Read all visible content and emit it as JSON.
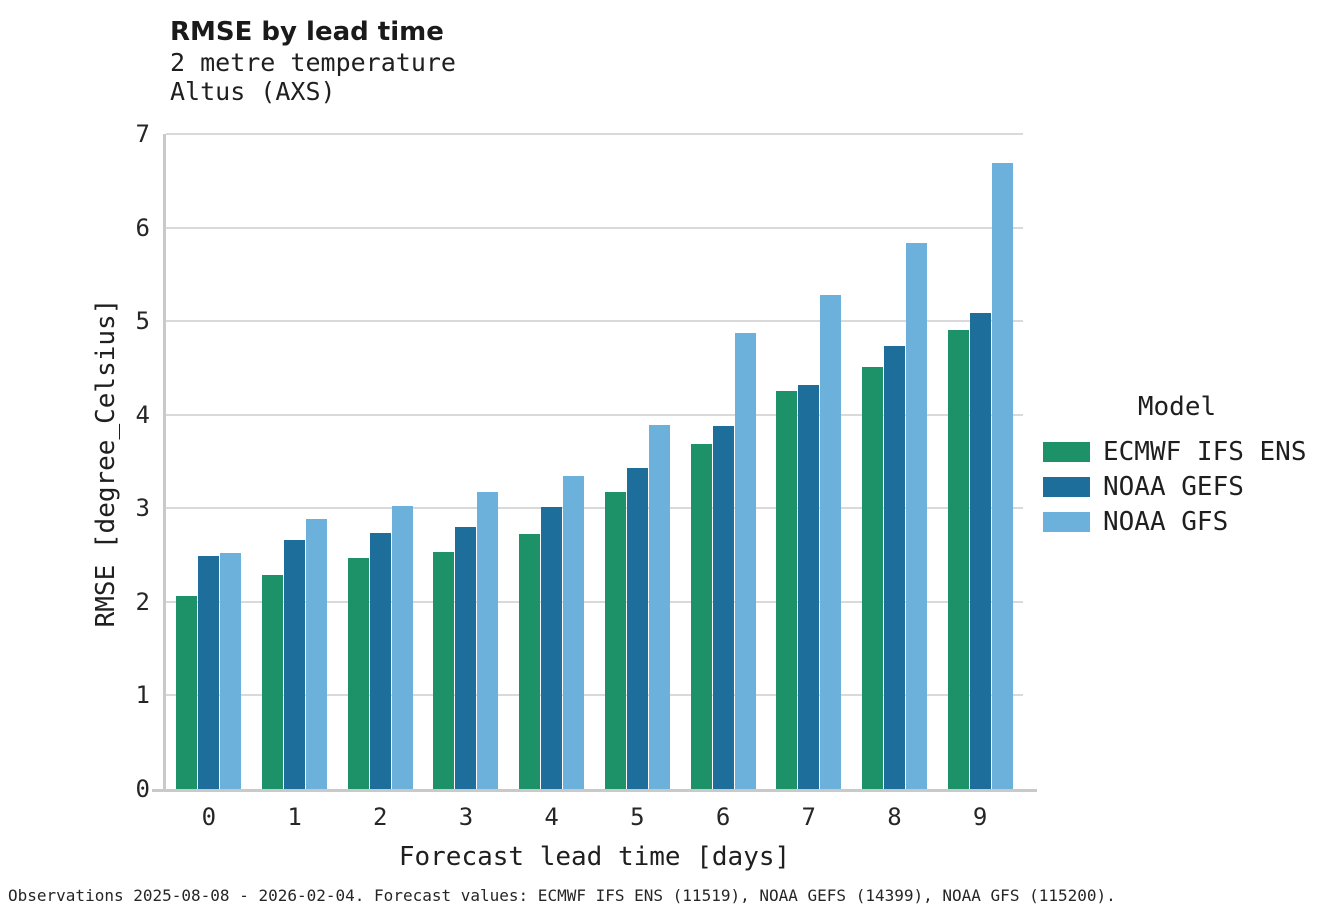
{
  "header": {
    "title": "RMSE by lead time",
    "subtitle_line1": "2 metre temperature",
    "subtitle_line2": "Altus (AXS)"
  },
  "chart_data": {
    "type": "bar",
    "title": "RMSE by lead time",
    "subtitle": [
      "2 metre temperature",
      "Altus (AXS)"
    ],
    "categories": [
      "0",
      "1",
      "2",
      "3",
      "4",
      "5",
      "6",
      "7",
      "8",
      "9"
    ],
    "series": [
      {
        "name": "ECMWF IFS ENS",
        "color": "#1d9168",
        "values": [
          2.06,
          2.29,
          2.47,
          2.53,
          2.73,
          3.17,
          3.69,
          4.25,
          4.51,
          4.91
        ]
      },
      {
        "name": "NOAA GEFS",
        "color": "#1e6e9c",
        "values": [
          2.49,
          2.66,
          2.74,
          2.8,
          3.01,
          3.43,
          3.88,
          4.32,
          4.73,
          5.09
        ]
      },
      {
        "name": "NOAA GFS",
        "color": "#6cb0dc",
        "values": [
          2.52,
          2.89,
          3.02,
          3.17,
          3.35,
          3.89,
          4.87,
          5.28,
          5.83,
          6.69
        ]
      }
    ],
    "xlabel": "Forecast lead time [days]",
    "ylabel": "RMSE [degree_Celsius]",
    "ylim": [
      0,
      7
    ],
    "yticks": [
      0,
      1,
      2,
      3,
      4,
      5,
      6,
      7
    ],
    "legend_title": "Model",
    "legend_position": "right",
    "grid": "horizontal-only",
    "colors": {
      "gridline": "#d9d9d9",
      "spine": "#c9c9c9",
      "text": "#1f1f1f"
    }
  },
  "footer": {
    "text": "Observations 2025-08-08 - 2026-02-04. Forecast values: ECMWF IFS ENS (11519), NOAA GEFS (14399), NOAA GFS (115200)."
  }
}
